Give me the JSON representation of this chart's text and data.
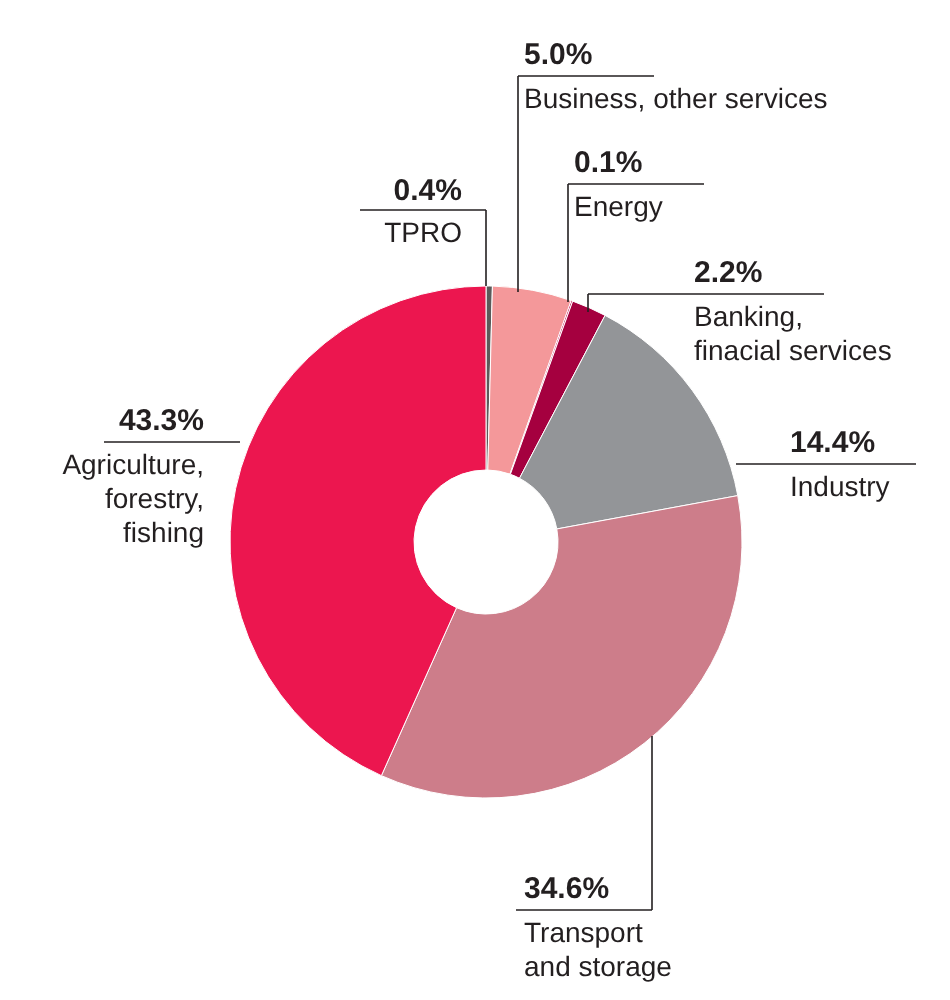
{
  "chart_data": {
    "type": "donut",
    "categories": [
      "TPRO",
      "Business, other services",
      "Energy",
      "Banking, finacial services",
      "Industry",
      "Transport and storage",
      "Agriculture, forestry, fishing"
    ],
    "values": [
      0.4,
      5.0,
      0.1,
      2.2,
      14.4,
      34.6,
      43.3
    ],
    "value_labels": [
      "0.4%",
      "5.0%",
      "0.1%",
      "2.2%",
      "14.4%",
      "34.6%",
      "43.3%"
    ],
    "colors": [
      "#5a5a5a",
      "#f4989a",
      "#c00048",
      "#a5003f",
      "#939598",
      "#cd7d8a",
      "#ec164f"
    ]
  }
}
